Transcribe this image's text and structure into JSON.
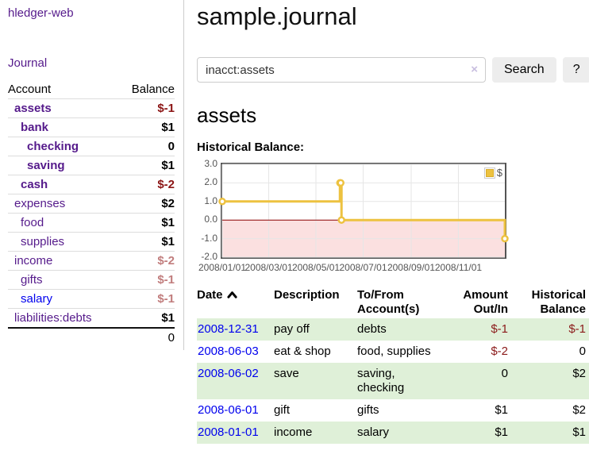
{
  "app": {
    "brand": "hledger-web"
  },
  "sidebar": {
    "journal_label": "Journal",
    "accounts_header": {
      "account": "Account",
      "balance": "Balance"
    },
    "accounts": [
      {
        "label": "assets",
        "depth": 1,
        "bold": true,
        "balance": "$-1",
        "neg": "strong"
      },
      {
        "label": "bank",
        "depth": 2,
        "bold": true,
        "balance": "$1",
        "neg": null
      },
      {
        "label": "checking",
        "depth": 3,
        "bold": true,
        "balance": "0",
        "neg": null
      },
      {
        "label": "saving",
        "depth": 3,
        "bold": true,
        "balance": "$1",
        "neg": null
      },
      {
        "label": "cash",
        "depth": 2,
        "bold": true,
        "balance": "$-2",
        "neg": "strong"
      },
      {
        "label": "expenses",
        "depth": 1,
        "bold": false,
        "balance": "$2",
        "neg": null
      },
      {
        "label": "food",
        "depth": 2,
        "bold": false,
        "balance": "$1",
        "neg": null
      },
      {
        "label": "supplies",
        "depth": 2,
        "bold": false,
        "balance": "$1",
        "neg": null
      },
      {
        "label": "income",
        "depth": 1,
        "bold": false,
        "balance": "$-2",
        "neg": "soft"
      },
      {
        "label": "gifts",
        "depth": 2,
        "bold": false,
        "balance": "$-1",
        "neg": "soft"
      },
      {
        "label": "salary",
        "depth": 2,
        "bold": false,
        "balance": "$-1",
        "neg": "soft",
        "unvisited": true
      },
      {
        "label": "liabilities:debts",
        "depth": 1,
        "bold": false,
        "balance": "$1",
        "neg": null
      }
    ],
    "total": "0"
  },
  "header": {
    "title": "sample.journal"
  },
  "search": {
    "value": "inacct:assets",
    "clear_icon": "×",
    "button_label": "Search",
    "help_label": "?"
  },
  "account_page": {
    "heading": "assets",
    "chart_title": "Historical Balance:"
  },
  "chart_data": {
    "type": "line",
    "title": "Historical Balance:",
    "series": [
      {
        "name": "$",
        "color": "#edc240",
        "step": true,
        "points": [
          {
            "x": "2008-01-01",
            "y": 1
          },
          {
            "x": "2008-06-01",
            "y": 2
          },
          {
            "x": "2008-06-02",
            "y": 2
          },
          {
            "x": "2008-06-03",
            "y": 0
          },
          {
            "x": "2008-12-31",
            "y": -1
          }
        ]
      }
    ],
    "x_range": [
      "2008-01-01",
      "2008-12-31"
    ],
    "ylim": [
      -2,
      3
    ],
    "yticks": [
      3.0,
      2.0,
      1.0,
      0.0,
      -1.0,
      -2.0
    ],
    "ytick_labels": [
      "3.0",
      "2.0",
      "1.0",
      "0.0",
      "-1.0",
      "-2.0"
    ],
    "xticks": [
      "2008-01-01",
      "2008-03-01",
      "2008-05-01",
      "2008-07-01",
      "2008-09-01",
      "2008-11-01"
    ],
    "xtick_labels": [
      "2008/01/01",
      "2008/03/01",
      "2008/05/01",
      "2008/07/01",
      "2008/09/01",
      "2008/11/01"
    ],
    "legend": {
      "label": "$",
      "position": "top-right"
    },
    "grid": true,
    "grid_color": "#e6e6e6",
    "border_color": "#545454",
    "tick_color": "#545454",
    "negative_region_color": "#fbe0e0",
    "zero_line_color": "#8b0000"
  },
  "register": {
    "columns": {
      "date": "Date",
      "description": "Description",
      "account": "To/From Account(s)",
      "amount": "Amount Out/In",
      "balance": "Historical Balance"
    },
    "sort": {
      "column": "date",
      "direction": "ascending"
    },
    "rows": [
      {
        "date": "2008-12-31",
        "description": "pay off",
        "accounts": "debts",
        "amount": "$-1",
        "amount_neg": true,
        "balance": "$-1",
        "balance_neg": true
      },
      {
        "date": "2008-06-03",
        "description": "eat & shop",
        "accounts": "food, supplies",
        "amount": "$-2",
        "amount_neg": true,
        "balance": "0",
        "balance_neg": false
      },
      {
        "date": "2008-06-02",
        "description": "save",
        "accounts": "saving,\nchecking",
        "amount": "0",
        "amount_neg": false,
        "balance": "$2",
        "balance_neg": false
      },
      {
        "date": "2008-06-01",
        "description": "gift",
        "accounts": "gifts",
        "amount": "$1",
        "amount_neg": false,
        "balance": "$2",
        "balance_neg": false
      },
      {
        "date": "2008-01-01",
        "description": "income",
        "accounts": "salary",
        "amount": "$1",
        "amount_neg": false,
        "balance": "$1",
        "balance_neg": false
      }
    ]
  }
}
